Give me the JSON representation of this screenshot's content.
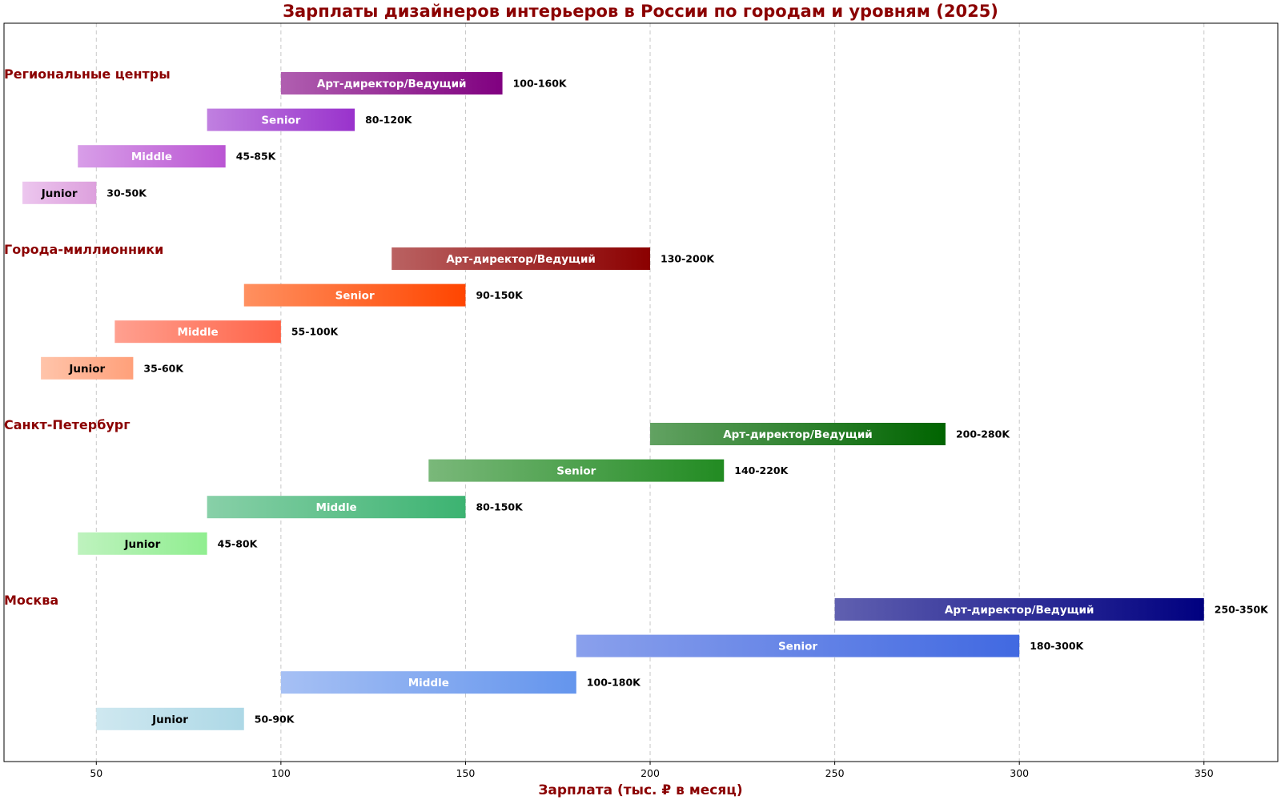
{
  "chart_data": {
    "type": "bar",
    "orientation": "horizontal-range",
    "title": "Зарплаты дизайнеров интерьеров в России по городам и уровням (2025)",
    "xlabel": "Зарплата (тыс. ₽ в месяц)",
    "ylabel": "",
    "xlim": [
      25,
      370
    ],
    "xticks": [
      50,
      100,
      150,
      200,
      250,
      300,
      350
    ],
    "grid": "x-dashed",
    "groups": [
      {
        "name": "Региональные центры",
        "bars": [
          {
            "level": "Арт-директор/Ведущий",
            "min": 100,
            "max": 160,
            "label": "100-160K",
            "color_start": "#b05fb0",
            "color_end": "#800080",
            "text_color": "#ffffff"
          },
          {
            "level": "Senior",
            "min": 80,
            "max": 120,
            "label": "80-120K",
            "color_start": "#c080e0",
            "color_end": "#9932cc",
            "text_color": "#ffffff"
          },
          {
            "level": "Middle",
            "min": 45,
            "max": 85,
            "label": "45-85K",
            "color_start": "#d89ee8",
            "color_end": "#ba55d3",
            "text_color": "#ffffff"
          },
          {
            "level": "Junior",
            "min": 30,
            "max": 50,
            "label": "30-50K",
            "color_start": "#ecc6ee",
            "color_end": "#dda0dd",
            "text_color": "#000000"
          }
        ]
      },
      {
        "name": "Города-миллионники",
        "bars": [
          {
            "level": "Арт-директор/Ведущий",
            "min": 130,
            "max": 200,
            "label": "130-200K",
            "color_start": "#ba6262",
            "color_end": "#8b0000",
            "text_color": "#ffffff"
          },
          {
            "level": "Senior",
            "min": 90,
            "max": 150,
            "label": "90-150K",
            "color_start": "#ff9060",
            "color_end": "#ff4500",
            "text_color": "#ffffff"
          },
          {
            "level": "Middle",
            "min": 55,
            "max": 100,
            "label": "55-100K",
            "color_start": "#ffa090",
            "color_end": "#ff6347",
            "text_color": "#ffffff"
          },
          {
            "level": "Junior",
            "min": 35,
            "max": 60,
            "label": "35-60K",
            "color_start": "#ffc4aa",
            "color_end": "#ffa07a",
            "text_color": "#000000"
          }
        ]
      },
      {
        "name": "Санкт-Петербург",
        "bars": [
          {
            "level": "Арт-директор/Ведущий",
            "min": 200,
            "max": 280,
            "label": "200-280K",
            "color_start": "#62a262",
            "color_end": "#006400",
            "text_color": "#ffffff"
          },
          {
            "level": "Senior",
            "min": 140,
            "max": 220,
            "label": "140-220K",
            "color_start": "#7ab87a",
            "color_end": "#228b22",
            "text_color": "#ffffff"
          },
          {
            "level": "Middle",
            "min": 80,
            "max": 150,
            "label": "80-150K",
            "color_start": "#88d0a8",
            "color_end": "#3cb371",
            "text_color": "#ffffff"
          },
          {
            "level": "Junior",
            "min": 45,
            "max": 80,
            "label": "45-80K",
            "color_start": "#bef2be",
            "color_end": "#90ee90",
            "text_color": "#000000"
          }
        ]
      },
      {
        "name": "Москва",
        "bars": [
          {
            "level": "Арт-директор/Ведущий",
            "min": 250,
            "max": 350,
            "label": "250-350K",
            "color_start": "#6060b0",
            "color_end": "#000080",
            "text_color": "#ffffff"
          },
          {
            "level": "Senior",
            "min": 180,
            "max": 300,
            "label": "180-300K",
            "color_start": "#8aa0ec",
            "color_end": "#4169e1",
            "text_color": "#ffffff"
          },
          {
            "level": "Middle",
            "min": 100,
            "max": 180,
            "label": "100-180K",
            "color_start": "#a6c0f4",
            "color_end": "#6495ed",
            "text_color": "#ffffff"
          },
          {
            "level": "Junior",
            "min": 50,
            "max": 90,
            "label": "50-90K",
            "color_start": "#cfe8f0",
            "color_end": "#add8e6",
            "text_color": "#000000"
          }
        ]
      }
    ]
  }
}
